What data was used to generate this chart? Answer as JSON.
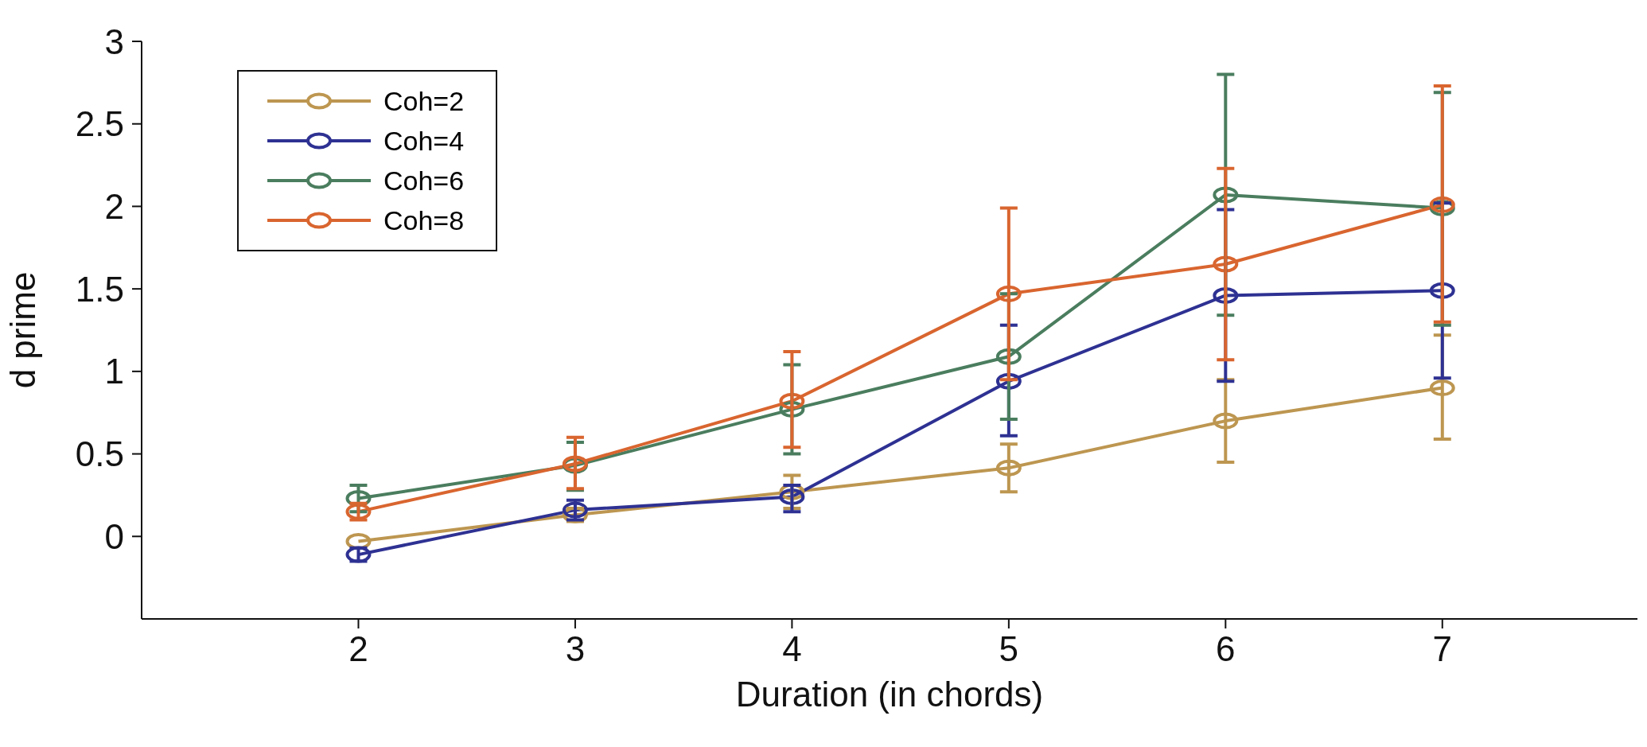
{
  "chart_data": {
    "type": "line",
    "xlabel": "Duration (in chords)",
    "ylabel": "d prime",
    "x": [
      2,
      3,
      4,
      5,
      6,
      7
    ],
    "series": [
      {
        "name": "Coh=2",
        "color": "#bd9650",
        "values": [
          -0.03,
          0.13,
          0.27,
          0.415,
          0.7,
          0.9
        ],
        "errors": [
          null,
          [
            0.09,
            0.17
          ],
          [
            0.17,
            0.37
          ],
          [
            0.27,
            0.56
          ],
          [
            0.45,
            0.95
          ],
          [
            0.59,
            1.22
          ]
        ]
      },
      {
        "name": "Coh=4",
        "color": "#2e3192",
        "values": [
          -0.11,
          0.16,
          0.24,
          0.94,
          1.46,
          1.49
        ],
        "errors": [
          [
            -0.15,
            -0.07
          ],
          [
            0.1,
            0.22
          ],
          [
            0.15,
            0.31
          ],
          [
            0.61,
            1.28
          ],
          [
            0.94,
            1.98
          ],
          [
            0.96,
            2.02
          ]
        ]
      },
      {
        "name": "Coh=6",
        "color": "#4a7d5e",
        "values": [
          0.23,
          0.43,
          0.77,
          1.09,
          2.07,
          1.99
        ],
        "errors": [
          [
            0.15,
            0.31
          ],
          [
            0.28,
            0.57
          ],
          [
            0.5,
            1.04
          ],
          [
            0.71,
            1.47
          ],
          [
            1.34,
            2.8
          ],
          [
            1.28,
            2.69
          ]
        ]
      },
      {
        "name": "Coh=8",
        "color": "#d9652f",
        "values": [
          0.15,
          0.44,
          0.82,
          1.47,
          1.65,
          2.01
        ],
        "errors": [
          [
            0.1,
            0.2
          ],
          [
            0.29,
            0.6
          ],
          [
            0.54,
            1.12
          ],
          [
            0.95,
            1.99
          ],
          [
            1.07,
            2.23
          ],
          [
            1.3,
            2.73
          ]
        ]
      }
    ],
    "xlim": [
      1,
      7.9
    ],
    "xticks": [
      2,
      3,
      4,
      5,
      6,
      7
    ],
    "ylim": [
      -0.5,
      3
    ],
    "yticks": [
      0,
      0.5,
      1,
      1.5,
      2,
      2.5,
      3
    ],
    "grid": false,
    "legend": "top left",
    "marker": "circle",
    "line_style": "solid"
  }
}
